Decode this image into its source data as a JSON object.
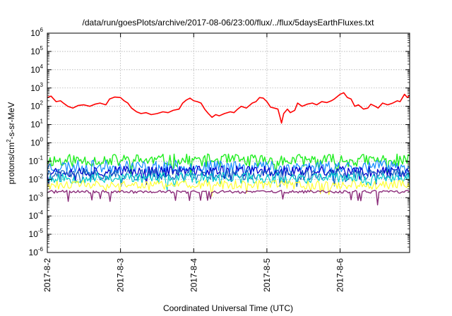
{
  "chart_data": {
    "type": "line",
    "title": "/data/run/goesPlots/archive/2017-08-06/23:00/flux/../flux/5daysEarthFluxes.txt",
    "xlabel": "Coordinated Universal Time (UTC)",
    "ylabel_parts": {
      "base": "protons/cm",
      "sup": "2",
      "rest": "-s-sr-MeV"
    },
    "y_scale": "log",
    "ylim": [
      1e-06,
      1000000.0
    ],
    "y_tick_exponents": [
      -6,
      -5,
      -4,
      -3,
      -2,
      -1,
      0,
      1,
      2,
      3,
      4,
      5,
      6
    ],
    "y_tick_base": "10",
    "x_range_days": [
      0,
      4.95
    ],
    "x_ticks": [
      {
        "day": 0,
        "label": "2017-8-2"
      },
      {
        "day": 1,
        "label": "2017-8-3"
      },
      {
        "day": 2,
        "label": "2017-8-4"
      },
      {
        "day": 3,
        "label": "2017-8-5"
      },
      {
        "day": 4,
        "label": "2017-8-6"
      }
    ],
    "grid": true,
    "legend": "none",
    "series": [
      {
        "color": "#ff0000",
        "width": 1.6,
        "points": [
          [
            0.0,
            300
          ],
          [
            0.05,
            360
          ],
          [
            0.12,
            180
          ],
          [
            0.18,
            200
          ],
          [
            0.22,
            150
          ],
          [
            0.28,
            100
          ],
          [
            0.35,
            80
          ],
          [
            0.42,
            110
          ],
          [
            0.5,
            120
          ],
          [
            0.58,
            100
          ],
          [
            0.65,
            130
          ],
          [
            0.72,
            150
          ],
          [
            0.8,
            120
          ],
          [
            0.85,
            250
          ],
          [
            0.92,
            320
          ],
          [
            1.0,
            300
          ],
          [
            1.05,
            200
          ],
          [
            1.1,
            150
          ],
          [
            1.15,
            80
          ],
          [
            1.22,
            50
          ],
          [
            1.28,
            40
          ],
          [
            1.35,
            45
          ],
          [
            1.42,
            35
          ],
          [
            1.5,
            40
          ],
          [
            1.58,
            50
          ],
          [
            1.65,
            45
          ],
          [
            1.72,
            60
          ],
          [
            1.8,
            70
          ],
          [
            1.85,
            150
          ],
          [
            1.9,
            220
          ],
          [
            1.95,
            280
          ],
          [
            2.0,
            200
          ],
          [
            2.05,
            180
          ],
          [
            2.1,
            150
          ],
          [
            2.15,
            70
          ],
          [
            2.2,
            40
          ],
          [
            2.25,
            25
          ],
          [
            2.3,
            35
          ],
          [
            2.35,
            30
          ],
          [
            2.42,
            40
          ],
          [
            2.5,
            50
          ],
          [
            2.55,
            45
          ],
          [
            2.6,
            70
          ],
          [
            2.65,
            100
          ],
          [
            2.72,
            80
          ],
          [
            2.8,
            150
          ],
          [
            2.85,
            180
          ],
          [
            2.9,
            300
          ],
          [
            2.95,
            280
          ],
          [
            3.0,
            180
          ],
          [
            3.05,
            90
          ],
          [
            3.1,
            80
          ],
          [
            3.15,
            70
          ],
          [
            3.18,
            25
          ],
          [
            3.2,
            12
          ],
          [
            3.23,
            40
          ],
          [
            3.28,
            70
          ],
          [
            3.32,
            45
          ],
          [
            3.38,
            60
          ],
          [
            3.42,
            150
          ],
          [
            3.48,
            100
          ],
          [
            3.55,
            130
          ],
          [
            3.62,
            150
          ],
          [
            3.68,
            120
          ],
          [
            3.75,
            180
          ],
          [
            3.82,
            160
          ],
          [
            3.88,
            200
          ],
          [
            3.92,
            250
          ],
          [
            4.0,
            450
          ],
          [
            4.05,
            550
          ],
          [
            4.1,
            300
          ],
          [
            4.15,
            250
          ],
          [
            4.2,
            100
          ],
          [
            4.25,
            120
          ],
          [
            4.32,
            70
          ],
          [
            4.38,
            80
          ],
          [
            4.42,
            130
          ],
          [
            4.48,
            100
          ],
          [
            4.52,
            80
          ],
          [
            4.58,
            150
          ],
          [
            4.65,
            120
          ],
          [
            4.72,
            150
          ],
          [
            4.78,
            200
          ],
          [
            4.82,
            180
          ],
          [
            4.88,
            450
          ],
          [
            4.92,
            300
          ],
          [
            4.95,
            400
          ]
        ]
      },
      {
        "color": "#22ee22",
        "width": 1.4,
        "base": 0.11,
        "amp": 0.35,
        "seed": 11
      },
      {
        "color": "#1e90ff",
        "width": 1.3,
        "base": 0.05,
        "amp": 0.35,
        "seed": 23
      },
      {
        "color": "#0000cc",
        "width": 1.3,
        "base": 0.028,
        "amp": 0.3,
        "seed": 37
      },
      {
        "color": "#1565c0",
        "width": 1.2,
        "base": 0.018,
        "amp": 0.3,
        "seed": 41
      },
      {
        "color": "#00cccc",
        "width": 1.2,
        "base": 0.012,
        "amp": 0.3,
        "seed": 53
      },
      {
        "color": "#ffff33",
        "width": 1.2,
        "base": 0.005,
        "amp": 0.25,
        "seed": 61
      },
      {
        "color": "#8b2c7a",
        "width": 1.4,
        "base": 0.0021,
        "amp": 0.08,
        "seed": 71
      }
    ]
  }
}
